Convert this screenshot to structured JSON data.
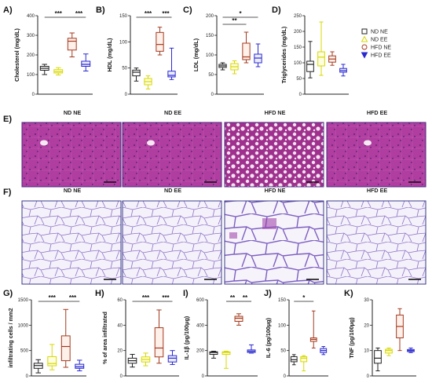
{
  "panel_labels": {
    "A": "A)",
    "B": "B)",
    "C": "C)",
    "D": "D)",
    "E": "E)",
    "F": "F)",
    "G": "G)",
    "H": "H)",
    "I": "I)",
    "J": "J)",
    "K": "K)"
  },
  "legend": [
    {
      "label": "ND NE",
      "marker": "square",
      "color": "#222222"
    },
    {
      "label": "ND EE",
      "marker": "triangle-up",
      "color": "#d8d800"
    },
    {
      "label": "HFD NE",
      "marker": "circle",
      "color": "#a33a1e"
    },
    {
      "label": "HFD EE",
      "marker": "triangle-down",
      "color": "#2a2ad0"
    }
  ],
  "image_rows": {
    "E": {
      "titles": [
        "ND NE",
        "ND EE",
        "HFD NE",
        "HFD EE"
      ],
      "stain": "H&E liver"
    },
    "F": {
      "titles": [
        "ND NE",
        "ND EE",
        "HFD NE",
        "HFD EE"
      ],
      "stain": "H&E adipose"
    }
  },
  "chart_data": [
    {
      "id": "A",
      "type": "box",
      "ylabel": "Cholesterol (mg/dL)",
      "ylim": [
        0,
        400
      ],
      "yticks": [
        0,
        100,
        200,
        300,
        400
      ],
      "groups": [
        "ND NE",
        "ND EE",
        "HFD NE",
        "HFD EE"
      ],
      "boxes": [
        {
          "min": 100,
          "q1": 122,
          "median": 132,
          "q3": 142,
          "max": 152
        },
        {
          "min": 98,
          "q1": 108,
          "median": 115,
          "q3": 125,
          "max": 135
        },
        {
          "min": 190,
          "q1": 225,
          "median": 270,
          "q3": 285,
          "max": 312
        },
        {
          "min": 118,
          "q1": 142,
          "median": 152,
          "q3": 168,
          "max": 205
        }
      ],
      "significance": [
        {
          "from": 0,
          "to": 2,
          "label": "***"
        },
        {
          "from": 2,
          "to": 3,
          "label": "***"
        }
      ]
    },
    {
      "id": "B",
      "type": "box",
      "ylabel": "HDL (mg/dL)",
      "ylim": [
        0,
        150
      ],
      "yticks": [
        0,
        50,
        100,
        150
      ],
      "groups": [
        "ND NE",
        "ND EE",
        "HFD NE",
        "HFD EE"
      ],
      "boxes": [
        {
          "min": 25,
          "q1": 35,
          "median": 42,
          "q3": 46,
          "max": 50
        },
        {
          "min": 10,
          "q1": 18,
          "median": 24,
          "q3": 30,
          "max": 35
        },
        {
          "min": 75,
          "q1": 82,
          "median": 95,
          "q3": 118,
          "max": 128
        },
        {
          "min": 28,
          "q1": 33,
          "median": 36,
          "q3": 44,
          "max": 88
        }
      ],
      "significance": [
        {
          "from": 0,
          "to": 2,
          "label": "***"
        },
        {
          "from": 2,
          "to": 3,
          "label": "***"
        }
      ]
    },
    {
      "id": "C",
      "type": "box",
      "ylabel": "LDL (mg/dL)",
      "ylim": [
        0,
        200
      ],
      "yticks": [
        0,
        50,
        100,
        150,
        200
      ],
      "groups": [
        "ND NE",
        "ND EE",
        "HFD NE",
        "HFD EE"
      ],
      "boxes": [
        {
          "min": 62,
          "q1": 68,
          "median": 72,
          "q3": 76,
          "max": 80
        },
        {
          "min": 52,
          "q1": 62,
          "median": 70,
          "q3": 78,
          "max": 85
        },
        {
          "min": 80,
          "q1": 88,
          "median": 95,
          "q3": 130,
          "max": 158
        },
        {
          "min": 70,
          "q1": 80,
          "median": 92,
          "q3": 102,
          "max": 128
        }
      ],
      "significance": [
        {
          "from": 0,
          "to": 3,
          "label": "*"
        },
        {
          "from": 0,
          "to": 2,
          "label": "**"
        }
      ]
    },
    {
      "id": "D",
      "type": "box",
      "ylabel": "Triglycerides (mg/dL)",
      "ylim": [
        0,
        250
      ],
      "yticks": [
        0,
        50,
        100,
        150,
        200,
        250
      ],
      "groups": [
        "ND NE",
        "ND EE",
        "HFD NE",
        "HFD EE"
      ],
      "boxes": [
        {
          "min": 52,
          "q1": 72,
          "median": 95,
          "q3": 105,
          "max": 168
        },
        {
          "min": 60,
          "q1": 90,
          "median": 118,
          "q3": 135,
          "max": 230
        },
        {
          "min": 92,
          "q1": 102,
          "median": 112,
          "q3": 122,
          "max": 135
        },
        {
          "min": 58,
          "q1": 70,
          "median": 75,
          "q3": 82,
          "max": 95
        }
      ],
      "significance": []
    },
    {
      "id": "G",
      "type": "box",
      "ylabel": "infiltrating cells / mm2",
      "ylim": [
        0,
        1500
      ],
      "yticks": [
        0,
        500,
        1000,
        1500
      ],
      "groups": [
        "ND NE",
        "ND EE",
        "HFD NE",
        "HFD EE"
      ],
      "boxes": [
        {
          "min": 60,
          "q1": 150,
          "median": 205,
          "q3": 250,
          "max": 320
        },
        {
          "min": 120,
          "q1": 200,
          "median": 245,
          "q3": 380,
          "max": 620
        },
        {
          "min": 170,
          "q1": 300,
          "median": 580,
          "q3": 790,
          "max": 1310
        },
        {
          "min": 100,
          "q1": 150,
          "median": 180,
          "q3": 230,
          "max": 310
        }
      ],
      "significance": [
        {
          "from": 0,
          "to": 2,
          "label": "***"
        },
        {
          "from": 2,
          "to": 3,
          "label": "***"
        }
      ]
    },
    {
      "id": "H",
      "type": "box",
      "ylabel": "% of area infiltrated",
      "ylim": [
        0,
        60
      ],
      "yticks": [
        0,
        20,
        40,
        60
      ],
      "groups": [
        "ND NE",
        "ND EE",
        "HFD NE",
        "HFD EE"
      ],
      "boxes": [
        {
          "min": 7,
          "q1": 10,
          "median": 12,
          "q3": 14,
          "max": 17
        },
        {
          "min": 8,
          "q1": 11,
          "median": 13,
          "q3": 15,
          "max": 18
        },
        {
          "min": 10,
          "q1": 15,
          "median": 22,
          "q3": 38,
          "max": 52
        },
        {
          "min": 9,
          "q1": 11,
          "median": 14,
          "q3": 16,
          "max": 20
        }
      ],
      "significance": [
        {
          "from": 0,
          "to": 2,
          "label": "***"
        },
        {
          "from": 2,
          "to": 3,
          "label": "***"
        }
      ]
    },
    {
      "id": "I",
      "type": "box",
      "ylabel": "IL-1β (pg/100μg)",
      "ylim": [
        0,
        600
      ],
      "yticks": [
        0,
        200,
        400,
        600
      ],
      "groups": [
        "ND NE",
        "ND EE",
        "HFD NE",
        "HFD EE"
      ],
      "boxes": [
        {
          "min": 140,
          "q1": 170,
          "median": 185,
          "q3": 190,
          "max": 195
        },
        {
          "min": 60,
          "q1": 170,
          "median": 185,
          "q3": 190,
          "max": 195
        },
        {
          "min": 400,
          "q1": 430,
          "median": 455,
          "q3": 470,
          "max": 490
        },
        {
          "min": 180,
          "q1": 185,
          "median": 195,
          "q3": 205,
          "max": 245
        }
      ],
      "significance": [
        {
          "from": 1,
          "to": 2,
          "label": "**"
        },
        {
          "from": 2,
          "to": 3,
          "label": "**"
        }
      ]
    },
    {
      "id": "J",
      "type": "box",
      "ylabel": "IL-6 (pg/100μg)",
      "ylim": [
        0,
        150
      ],
      "yticks": [
        0,
        50,
        100,
        150
      ],
      "groups": [
        "ND NE",
        "ND EE",
        "HFD NE",
        "HFD EE"
      ],
      "boxes": [
        {
          "min": 22,
          "q1": 28,
          "median": 32,
          "q3": 38,
          "max": 42
        },
        {
          "min": 10,
          "q1": 28,
          "median": 35,
          "q3": 38,
          "max": 40
        },
        {
          "min": 55,
          "q1": 68,
          "median": 72,
          "q3": 75,
          "max": 128
        },
        {
          "min": 42,
          "q1": 46,
          "median": 50,
          "q3": 54,
          "max": 58
        }
      ],
      "significance": [
        {
          "from": 0,
          "to": 2,
          "label": "*"
        }
      ]
    },
    {
      "id": "K",
      "type": "box",
      "ylabel": "TNF (pg/100μg)",
      "ylim": [
        0,
        30
      ],
      "yticks": [
        0,
        10,
        20,
        30
      ],
      "groups": [
        "ND NE",
        "ND EE",
        "HFD NE",
        "HFD EE"
      ],
      "boxes": [
        {
          "min": 2,
          "q1": 5,
          "median": 7,
          "q3": 10,
          "max": 11
        },
        {
          "min": 8,
          "q1": 9,
          "median": 10,
          "q3": 10.5,
          "max": 11
        },
        {
          "min": 10,
          "q1": 15,
          "median": 19.5,
          "q3": 24,
          "max": 26.5
        },
        {
          "min": 9.2,
          "q1": 9.6,
          "median": 10,
          "q3": 10.4,
          "max": 11
        }
      ],
      "significance": []
    }
  ],
  "colors": {
    "groups": [
      "#222222",
      "#d8d800",
      "#a33a1e",
      "#2a2ad0"
    ],
    "liver_bg": "#b03da0",
    "liver_hfd_ne_bg": "#a0308e",
    "liver_frame": "#4a2b80",
    "adipose_bg": "#efeaf7",
    "adipose_wall": "#9a7fcf",
    "adipose_frame": "#3a3a8a"
  }
}
